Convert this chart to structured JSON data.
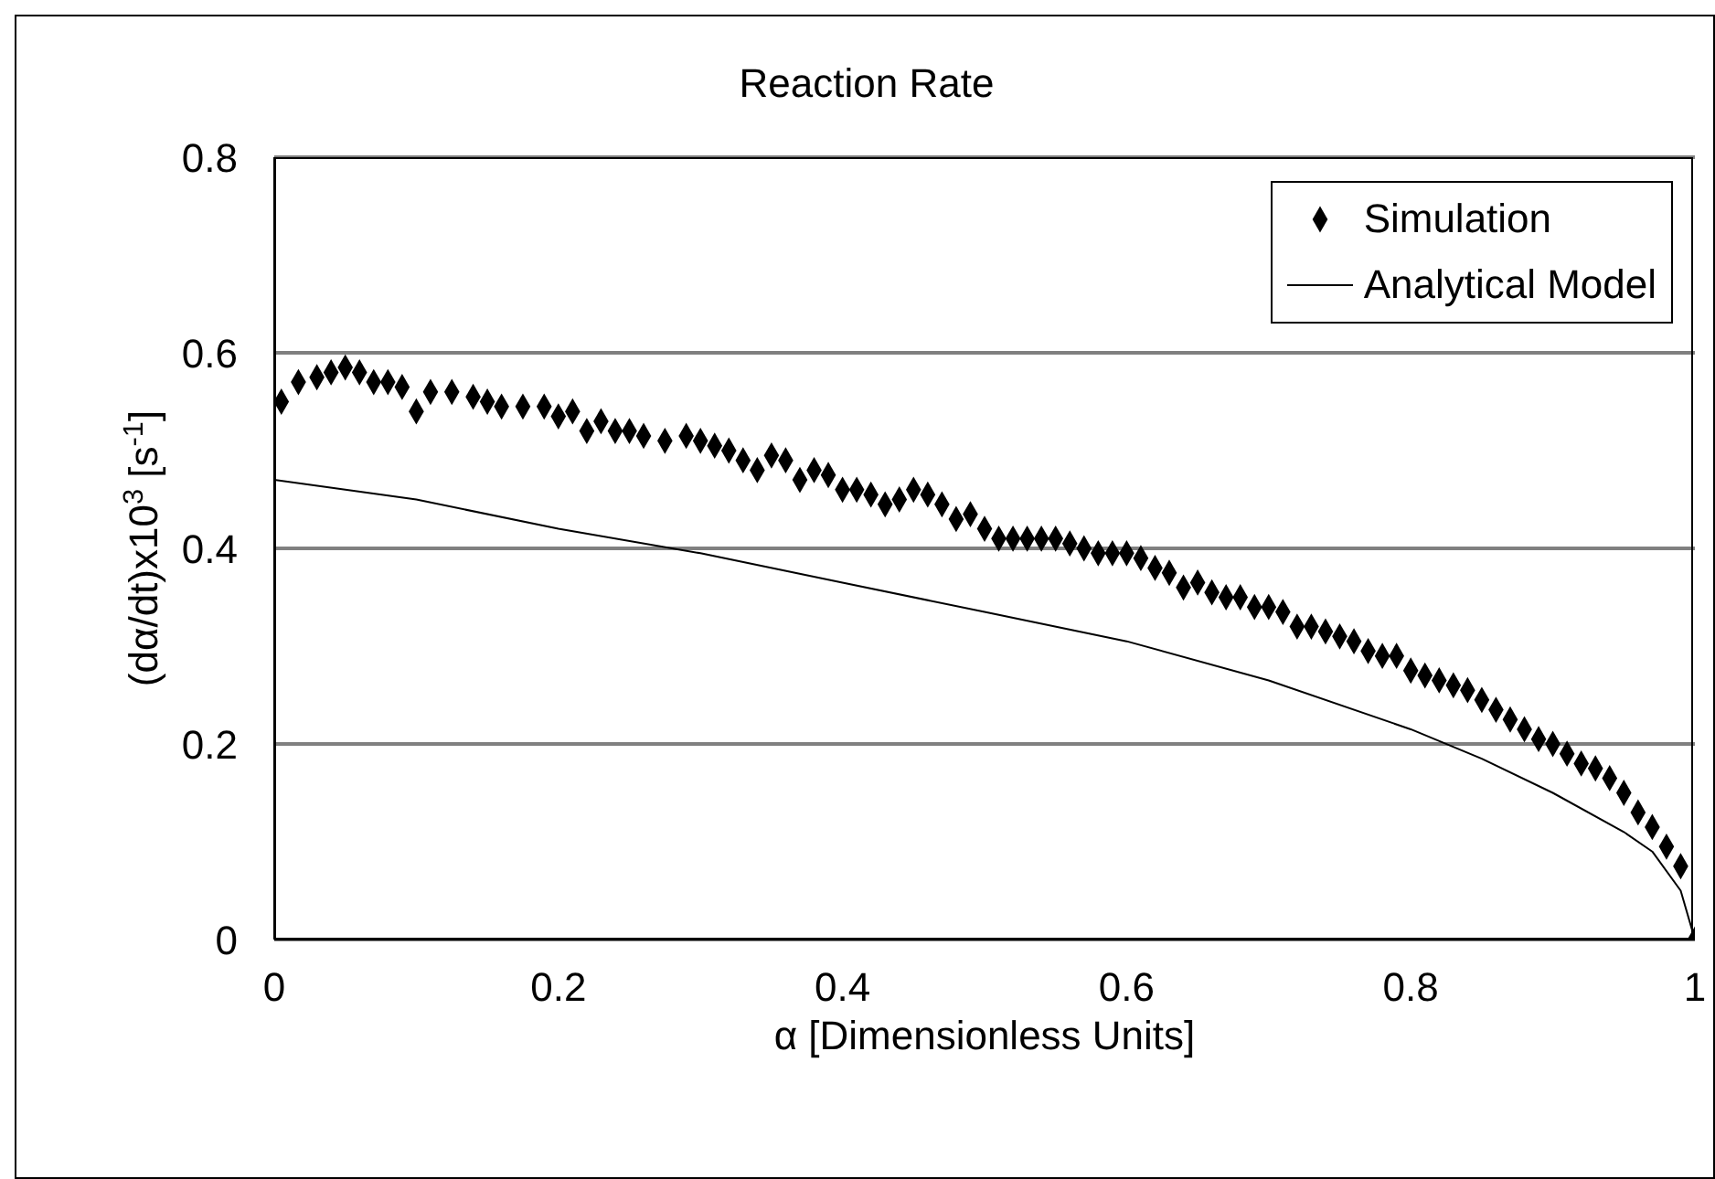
{
  "chart_data": {
    "type": "scatter",
    "title": "Reaction Rate",
    "xlabel": "α [Dimensionless Units]",
    "ylabel": "(dα/dt)x10$^{3}$ [s$^{-1}$]",
    "xlim": [
      0,
      1
    ],
    "xticks": [
      0,
      0.2,
      0.4,
      0.6,
      0.8,
      1
    ],
    "ylim": [
      0,
      0.8
    ],
    "yticks": [
      0,
      0.2,
      0.4,
      0.6,
      0.8
    ],
    "grid": "y",
    "legend": "top right",
    "series": [
      {
        "name": "Simulation",
        "marker": "diamond",
        "color": "#000000",
        "x": [
          0.005,
          0.017,
          0.03,
          0.04,
          0.05,
          0.06,
          0.07,
          0.08,
          0.09,
          0.1,
          0.11,
          0.125,
          0.14,
          0.15,
          0.16,
          0.175,
          0.19,
          0.2,
          0.21,
          0.22,
          0.23,
          0.24,
          0.25,
          0.26,
          0.275,
          0.29,
          0.3,
          0.31,
          0.32,
          0.33,
          0.34,
          0.35,
          0.36,
          0.37,
          0.38,
          0.39,
          0.4,
          0.41,
          0.42,
          0.43,
          0.44,
          0.45,
          0.46,
          0.47,
          0.48,
          0.49,
          0.5,
          0.51,
          0.52,
          0.53,
          0.54,
          0.55,
          0.56,
          0.57,
          0.58,
          0.59,
          0.6,
          0.61,
          0.62,
          0.63,
          0.64,
          0.65,
          0.66,
          0.67,
          0.68,
          0.69,
          0.7,
          0.71,
          0.72,
          0.73,
          0.74,
          0.75,
          0.76,
          0.77,
          0.78,
          0.79,
          0.8,
          0.81,
          0.82,
          0.83,
          0.84,
          0.85,
          0.86,
          0.87,
          0.88,
          0.89,
          0.9,
          0.91,
          0.92,
          0.93,
          0.94,
          0.95,
          0.96,
          0.97,
          0.98,
          0.99,
          1.0
        ],
        "values": [
          0.55,
          0.57,
          0.575,
          0.58,
          0.585,
          0.58,
          0.57,
          0.57,
          0.565,
          0.54,
          0.56,
          0.56,
          0.555,
          0.55,
          0.545,
          0.545,
          0.545,
          0.535,
          0.54,
          0.52,
          0.53,
          0.52,
          0.52,
          0.515,
          0.51,
          0.515,
          0.51,
          0.505,
          0.5,
          0.49,
          0.48,
          0.495,
          0.49,
          0.47,
          0.48,
          0.475,
          0.46,
          0.46,
          0.455,
          0.445,
          0.45,
          0.46,
          0.455,
          0.445,
          0.43,
          0.435,
          0.42,
          0.41,
          0.41,
          0.41,
          0.41,
          0.41,
          0.405,
          0.4,
          0.395,
          0.395,
          0.395,
          0.39,
          0.38,
          0.375,
          0.36,
          0.365,
          0.355,
          0.35,
          0.35,
          0.34,
          0.34,
          0.335,
          0.32,
          0.32,
          0.315,
          0.31,
          0.305,
          0.295,
          0.29,
          0.29,
          0.275,
          0.27,
          0.265,
          0.26,
          0.255,
          0.245,
          0.235,
          0.225,
          0.215,
          0.205,
          0.2,
          0.19,
          0.18,
          0.175,
          0.165,
          0.15,
          0.13,
          0.115,
          0.095,
          0.075,
          0.0
        ]
      },
      {
        "name": "Analytical Model",
        "type": "line",
        "marker": "none",
        "line_style": "solid",
        "color": "#000000",
        "x": [
          0,
          0.1,
          0.2,
          0.3,
          0.4,
          0.5,
          0.6,
          0.7,
          0.8,
          0.85,
          0.9,
          0.95,
          0.97,
          0.99,
          1.0
        ],
        "values": [
          0.47,
          0.45,
          0.42,
          0.395,
          0.365,
          0.335,
          0.305,
          0.265,
          0.215,
          0.185,
          0.15,
          0.11,
          0.09,
          0.05,
          0.0
        ]
      }
    ]
  }
}
